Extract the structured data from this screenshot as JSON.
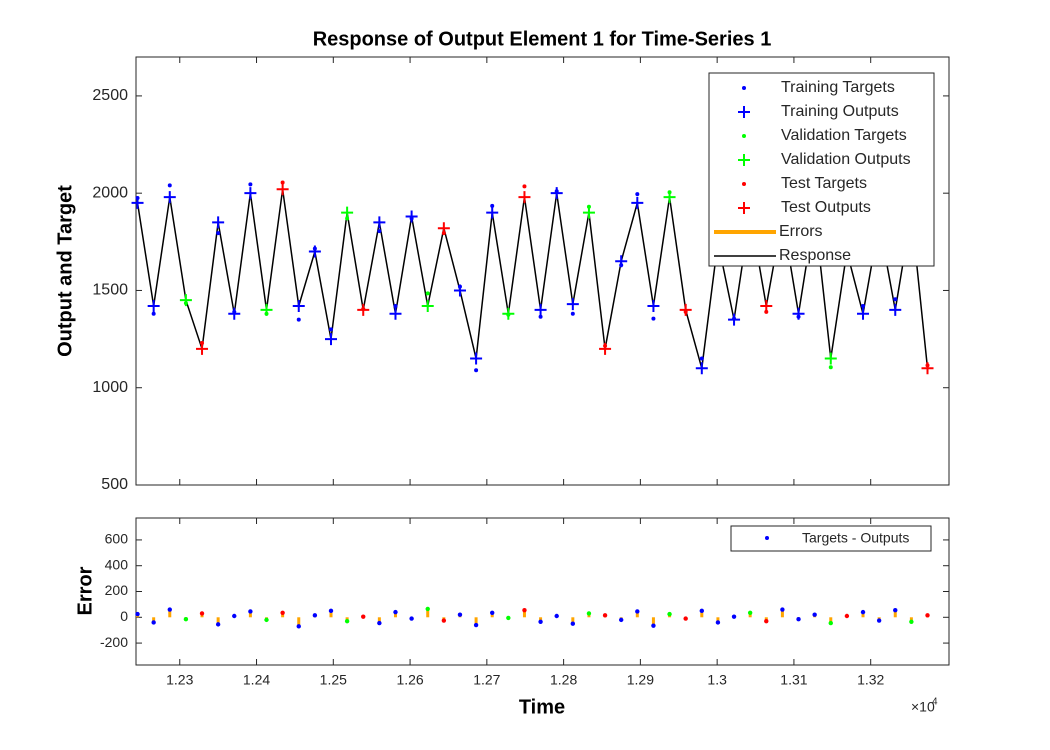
{
  "chart_data": [
    {
      "type": "line",
      "title": "Response of Output Element 1 for Time-Series 1",
      "ylabel": "Output and Target",
      "xlim": [
        12243,
        13302
      ],
      "ylim": [
        500,
        2700
      ],
      "xticks": [
        12300,
        12400,
        12500,
        12600,
        12700,
        12800,
        12900,
        13000,
        13100,
        13200
      ],
      "yticks": [
        500,
        1000,
        1500,
        2000,
        2500
      ],
      "legend": "upper right",
      "response": {
        "name": "Response",
        "color": "#000000",
        "x": [
          12245,
          12266,
          12287,
          12308,
          12329,
          12350,
          12371,
          12392,
          12413,
          12434,
          12455,
          12476,
          12497,
          12518,
          12539,
          12560,
          12581,
          12602,
          12623,
          12644,
          12665,
          12686,
          12707,
          12728,
          12749,
          12770,
          12791,
          12812,
          12833,
          12854,
          12875,
          12896,
          12917,
          12938,
          12959,
          12980,
          13001,
          13022,
          13043,
          13064,
          13085,
          13106,
          13127,
          13148,
          13169,
          13190,
          13211,
          13232,
          13253,
          13274
        ],
        "values": [
          1950,
          1420,
          1980,
          1450,
          1200,
          1850,
          1380,
          2000,
          1400,
          2020,
          1420,
          1700,
          1250,
          1900,
          1400,
          1850,
          1380,
          1880,
          1420,
          1820,
          1500,
          1150,
          1900,
          1380,
          1980,
          1400,
          2000,
          1430,
          1900,
          1200,
          1650,
          1950,
          1420,
          1980,
          1400,
          1100,
          1750,
          1350,
          1900,
          1420,
          1880,
          1380,
          1900,
          1150,
          1700,
          1380,
          1850,
          1400,
          1900,
          1100
        ]
      },
      "errors_legend": {
        "name": "Errors",
        "color": "#ffa500"
      },
      "series": [
        {
          "name": "Training Targets",
          "color": "#0000ff",
          "marker": "dot",
          "x": [
            12245,
            12266,
            12287,
            12350,
            12371,
            12392,
            12455,
            12476,
            12497,
            12560,
            12581,
            12602,
            12665,
            12686,
            12707,
            12770,
            12791,
            12812,
            12875,
            12896,
            12917,
            12980,
            13001,
            13022,
            13085,
            13106,
            13127,
            13190,
            13211,
            13232
          ],
          "values": [
            1975,
            1380,
            2040,
            1795,
            1390,
            2045,
            1350,
            1715,
            1300,
            1805,
            1420,
            1870,
            1520,
            1090,
            1935,
            1365,
            2010,
            1380,
            1630,
            1995,
            1355,
            1150,
            1710,
            1355,
            1940,
            1365,
            1920,
            1420,
            1825,
            1455
          ]
        },
        {
          "name": "Training Outputs",
          "color": "#0000ff",
          "marker": "plus",
          "x": [
            12245,
            12266,
            12287,
            12350,
            12371,
            12392,
            12455,
            12476,
            12497,
            12560,
            12581,
            12602,
            12665,
            12686,
            12707,
            12770,
            12791,
            12812,
            12875,
            12896,
            12917,
            12980,
            13001,
            13022,
            13085,
            13106,
            13127,
            13190,
            13211,
            13232
          ],
          "values": [
            1950,
            1420,
            1980,
            1850,
            1380,
            2000,
            1420,
            1700,
            1250,
            1850,
            1380,
            1880,
            1500,
            1150,
            1900,
            1400,
            2000,
            1430,
            1650,
            1950,
            1420,
            1100,
            1750,
            1350,
            1880,
            1380,
            1900,
            1380,
            1850,
            1400
          ]
        },
        {
          "name": "Validation Targets",
          "color": "#00ff00",
          "marker": "dot",
          "x": [
            12308,
            12413,
            12518,
            12623,
            12728,
            12833,
            12938,
            13043,
            13148,
            13253
          ],
          "values": [
            1435,
            1380,
            1870,
            1485,
            1375,
            1930,
            2005,
            1935,
            1105,
            1865
          ]
        },
        {
          "name": "Validation Outputs",
          "color": "#00ff00",
          "marker": "plus",
          "x": [
            12308,
            12413,
            12518,
            12623,
            12728,
            12833,
            12938,
            13043,
            13148,
            13253
          ],
          "values": [
            1450,
            1400,
            1900,
            1420,
            1380,
            1900,
            1980,
            1900,
            1150,
            1900
          ]
        },
        {
          "name": "Test Targets",
          "color": "#ff0000",
          "marker": "dot",
          "x": [
            12329,
            12434,
            12539,
            12644,
            12749,
            12854,
            12959,
            13064,
            13169,
            13274
          ],
          "values": [
            1230,
            2055,
            1405,
            1795,
            2035,
            1215,
            1390,
            1390,
            1710,
            1115
          ]
        },
        {
          "name": "Test Outputs",
          "color": "#ff0000",
          "marker": "plus",
          "x": [
            12329,
            12434,
            12539,
            12644,
            12749,
            12854,
            12959,
            13064,
            13169,
            13274
          ],
          "values": [
            1200,
            2020,
            1400,
            1820,
            1980,
            1200,
            1400,
            1420,
            1700,
            1100
          ]
        }
      ]
    },
    {
      "type": "scatter",
      "xlabel": "Time",
      "ylabel": "Error",
      "x_multiplier": "×10",
      "x_multiplier_exponent": "4",
      "xlim": [
        12243,
        13302
      ],
      "ylim": [
        -370,
        770
      ],
      "xticks": [
        {
          "value": 12300,
          "label": "1.23"
        },
        {
          "value": 12400,
          "label": "1.24"
        },
        {
          "value": 12500,
          "label": "1.25"
        },
        {
          "value": 12600,
          "label": "1.26"
        },
        {
          "value": 12700,
          "label": "1.27"
        },
        {
          "value": 12800,
          "label": "1.28"
        },
        {
          "value": 12900,
          "label": "1.29"
        },
        {
          "value": 13000,
          "label": "1.3"
        },
        {
          "value": 13100,
          "label": "1.31"
        },
        {
          "value": 13200,
          "label": "1.32"
        }
      ],
      "yticks": [
        -200,
        0,
        200,
        400,
        600
      ],
      "legend": "upper right",
      "error_line_color": "#ffa500",
      "series": [
        {
          "name": "Targets - Outputs",
          "color": "#0000ff",
          "x": [
            12245,
            12266,
            12287,
            12350,
            12371,
            12392,
            12455,
            12476,
            12497,
            12560,
            12581,
            12602,
            12665,
            12686,
            12707,
            12770,
            12791,
            12812,
            12875,
            12896,
            12917,
            12980,
            13001,
            13022,
            13085,
            13106,
            13127,
            13190,
            13211,
            13232
          ],
          "values": [
            25,
            -40,
            60,
            -55,
            10,
            45,
            -70,
            15,
            50,
            -45,
            40,
            -10,
            20,
            -60,
            35,
            -35,
            10,
            -50,
            -20,
            45,
            -65,
            50,
            -40,
            5,
            60,
            -15,
            20,
            40,
            -25,
            55
          ]
        },
        {
          "color": "#00ff00",
          "x": [
            12308,
            12413,
            12518,
            12623,
            12728,
            12833,
            12938,
            13043,
            13148,
            13253
          ],
          "values": [
            -15,
            -20,
            -30,
            65,
            -5,
            30,
            25,
            35,
            -45,
            -35
          ]
        },
        {
          "color": "#ff0000",
          "x": [
            12329,
            12434,
            12539,
            12644,
            12749,
            12854,
            12959,
            13064,
            13169,
            13274
          ],
          "values": [
            30,
            35,
            5,
            -25,
            55,
            15,
            -10,
            -30,
            10,
            15
          ]
        }
      ]
    }
  ]
}
